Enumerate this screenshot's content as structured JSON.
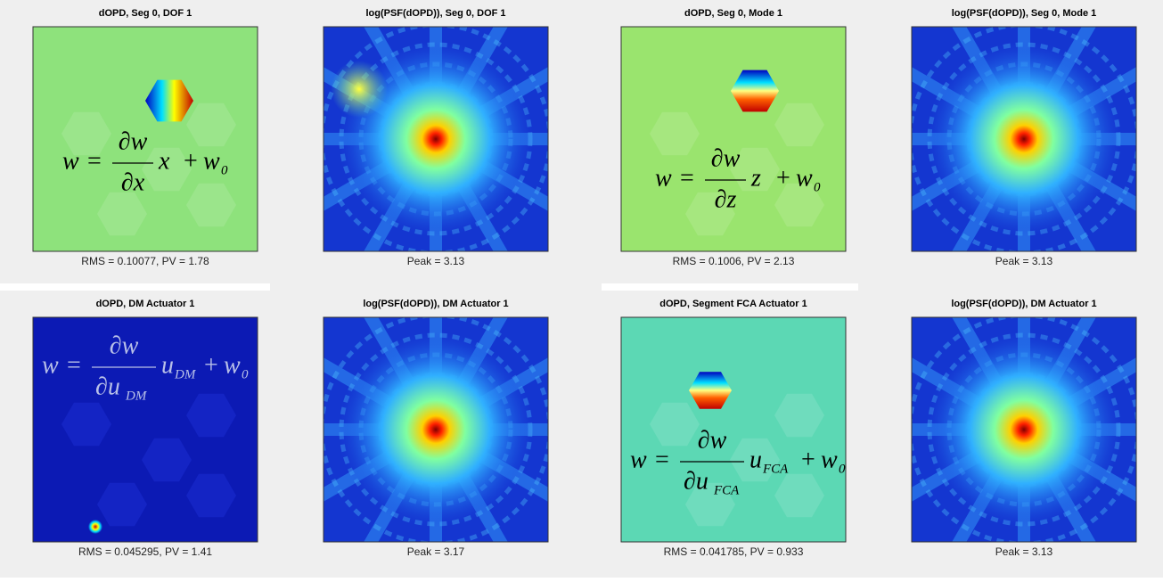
{
  "panels": [
    {
      "opd": {
        "title": "dOPD, Seg 0, DOF 1",
        "caption": "RMS = 0.10077, PV = 1.78",
        "color": "#8ee27c",
        "equation": {
          "lhs": "w",
          "eq": "=",
          "num": "∂w",
          "den": "∂x",
          "var": "x",
          "plus": "+",
          "w0": "w",
          "w0_sub": "0"
        }
      },
      "psf": {
        "title": "log(PSF(dOPD)), Seg 0, DOF 1",
        "caption": "Peak = 3.13"
      }
    },
    {
      "opd": {
        "title": "dOPD, Seg 0, Mode 1",
        "caption": "RMS = 0.1006, PV = 2.13",
        "color": "#9ae46e",
        "equation": {
          "lhs": "w",
          "eq": "=",
          "num": "∂w",
          "den": "∂z",
          "var": "z",
          "plus": "+",
          "w0": "w",
          "w0_sub": "0"
        }
      },
      "psf": {
        "title": "log(PSF(dOPD)), Seg 0, Mode 1",
        "caption": "Peak = 3.13"
      }
    },
    {
      "opd": {
        "title": "dOPD, DM Actuator 1",
        "caption": "RMS = 0.045295, PV = 1.41",
        "color": "#0c1ab4",
        "equation": {
          "lhs": "w",
          "eq": "=",
          "num": "∂w",
          "den": "∂u",
          "den_sub": "DM",
          "var": "u",
          "var_sub": "DM",
          "plus": "+",
          "w0": "w",
          "w0_sub": "0"
        }
      },
      "psf": {
        "title": "log(PSF(dOPD)), DM Actuator 1",
        "caption": "Peak = 3.17"
      }
    },
    {
      "opd": {
        "title": "dOPD, Segment FCA Actuator 1",
        "caption": "RMS = 0.041785, PV = 0.933",
        "color": "#5cd8b4",
        "equation": {
          "lhs": "w",
          "eq": "=",
          "num": "∂w",
          "den": "∂u",
          "den_sub": "FCA",
          "var": "u",
          "var_sub": "FCA",
          "plus": "+",
          "w0": "w",
          "w0_sub": "0"
        }
      },
      "psf": {
        "title": "log(PSF(dOPD)), DM Actuator 1",
        "caption": "Peak = 3.13"
      }
    }
  ]
}
